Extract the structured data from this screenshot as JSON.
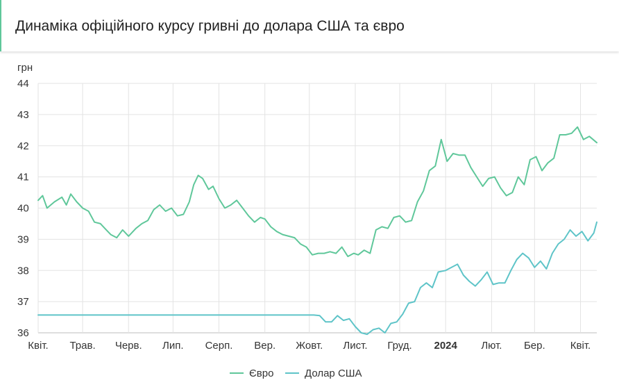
{
  "header": {
    "title": "Динаміка офіційного курсу гривні до долара США та євро"
  },
  "chart_data": {
    "type": "line",
    "title": "Динаміка офіційного курсу гривні до долара США та євро",
    "ylabel": "грн",
    "xlabel": "",
    "ylim": [
      36,
      44
    ],
    "yticks": [
      36,
      37,
      38,
      39,
      40,
      41,
      42,
      43,
      44
    ],
    "xlim": [
      "2023-04-01",
      "2024-04-12"
    ],
    "grid": true,
    "legend_position": "bottom-center",
    "xticks": [
      {
        "date": "2023-04-01",
        "label": "Квіт.",
        "bold": false
      },
      {
        "date": "2023-05-01",
        "label": "Трав.",
        "bold": false
      },
      {
        "date": "2023-06-01",
        "label": "Черв.",
        "bold": false
      },
      {
        "date": "2023-07-01",
        "label": "Лип.",
        "bold": false
      },
      {
        "date": "2023-08-01",
        "label": "Серп.",
        "bold": false
      },
      {
        "date": "2023-09-01",
        "label": "Вер.",
        "bold": false
      },
      {
        "date": "2023-10-01",
        "label": "Жовт.",
        "bold": false
      },
      {
        "date": "2023-11-01",
        "label": "Лист.",
        "bold": false
      },
      {
        "date": "2023-12-01",
        "label": "Груд.",
        "bold": false
      },
      {
        "date": "2024-01-01",
        "label": "2024",
        "bold": true
      },
      {
        "date": "2024-02-01",
        "label": "Лют.",
        "bold": false
      },
      {
        "date": "2024-03-01",
        "label": "Бер.",
        "bold": false
      },
      {
        "date": "2024-04-01",
        "label": "Квіт.",
        "bold": false
      }
    ],
    "series": [
      {
        "name": "Євро",
        "color": "#5fc79a",
        "points": [
          [
            "2023-04-01",
            40.25
          ],
          [
            "2023-04-04",
            40.4
          ],
          [
            "2023-04-07",
            40.0
          ],
          [
            "2023-04-12",
            40.2
          ],
          [
            "2023-04-17",
            40.35
          ],
          [
            "2023-04-20",
            40.1
          ],
          [
            "2023-04-23",
            40.45
          ],
          [
            "2023-04-27",
            40.2
          ],
          [
            "2023-05-01",
            40.0
          ],
          [
            "2023-05-05",
            39.9
          ],
          [
            "2023-05-09",
            39.55
          ],
          [
            "2023-05-13",
            39.5
          ],
          [
            "2023-05-17",
            39.3
          ],
          [
            "2023-05-20",
            39.15
          ],
          [
            "2023-05-24",
            39.05
          ],
          [
            "2023-05-28",
            39.3
          ],
          [
            "2023-06-01",
            39.1
          ],
          [
            "2023-06-06",
            39.35
          ],
          [
            "2023-06-10",
            39.5
          ],
          [
            "2023-06-14",
            39.6
          ],
          [
            "2023-06-18",
            39.95
          ],
          [
            "2023-06-22",
            40.1
          ],
          [
            "2023-06-26",
            39.9
          ],
          [
            "2023-06-30",
            40.0
          ],
          [
            "2023-07-04",
            39.75
          ],
          [
            "2023-07-08",
            39.8
          ],
          [
            "2023-07-12",
            40.2
          ],
          [
            "2023-07-15",
            40.75
          ],
          [
            "2023-07-18",
            41.05
          ],
          [
            "2023-07-21",
            40.95
          ],
          [
            "2023-07-25",
            40.6
          ],
          [
            "2023-07-28",
            40.7
          ],
          [
            "2023-08-01",
            40.3
          ],
          [
            "2023-08-05",
            40.0
          ],
          [
            "2023-08-09",
            40.1
          ],
          [
            "2023-08-13",
            40.25
          ],
          [
            "2023-08-17",
            40.0
          ],
          [
            "2023-08-21",
            39.75
          ],
          [
            "2023-08-25",
            39.55
          ],
          [
            "2023-08-29",
            39.7
          ],
          [
            "2023-09-01",
            39.65
          ],
          [
            "2023-09-05",
            39.4
          ],
          [
            "2023-09-09",
            39.25
          ],
          [
            "2023-09-13",
            39.15
          ],
          [
            "2023-09-17",
            39.1
          ],
          [
            "2023-09-21",
            39.05
          ],
          [
            "2023-09-25",
            38.85
          ],
          [
            "2023-09-29",
            38.75
          ],
          [
            "2023-10-03",
            38.5
          ],
          [
            "2023-10-07",
            38.55
          ],
          [
            "2023-10-11",
            38.55
          ],
          [
            "2023-10-15",
            38.6
          ],
          [
            "2023-10-19",
            38.55
          ],
          [
            "2023-10-23",
            38.75
          ],
          [
            "2023-10-27",
            38.45
          ],
          [
            "2023-10-31",
            38.55
          ],
          [
            "2023-11-03",
            38.5
          ],
          [
            "2023-11-07",
            38.65
          ],
          [
            "2023-11-11",
            38.55
          ],
          [
            "2023-11-15",
            39.3
          ],
          [
            "2023-11-19",
            39.4
          ],
          [
            "2023-11-23",
            39.35
          ],
          [
            "2023-11-27",
            39.7
          ],
          [
            "2023-12-01",
            39.75
          ],
          [
            "2023-12-05",
            39.55
          ],
          [
            "2023-12-09",
            39.6
          ],
          [
            "2023-12-13",
            40.2
          ],
          [
            "2023-12-17",
            40.55
          ],
          [
            "2023-12-21",
            41.2
          ],
          [
            "2023-12-25",
            41.35
          ],
          [
            "2023-12-29",
            42.2
          ],
          [
            "2024-01-02",
            41.5
          ],
          [
            "2024-01-06",
            41.75
          ],
          [
            "2024-01-10",
            41.7
          ],
          [
            "2024-01-14",
            41.7
          ],
          [
            "2024-01-18",
            41.3
          ],
          [
            "2024-01-22",
            41.0
          ],
          [
            "2024-01-26",
            40.7
          ],
          [
            "2024-01-30",
            40.95
          ],
          [
            "2024-02-03",
            41.0
          ],
          [
            "2024-02-07",
            40.65
          ],
          [
            "2024-02-11",
            40.4
          ],
          [
            "2024-02-15",
            40.5
          ],
          [
            "2024-02-19",
            41.0
          ],
          [
            "2024-02-23",
            40.75
          ],
          [
            "2024-02-27",
            41.55
          ],
          [
            "2024-03-02",
            41.65
          ],
          [
            "2024-03-06",
            41.2
          ],
          [
            "2024-03-10",
            41.45
          ],
          [
            "2024-03-14",
            41.6
          ],
          [
            "2024-03-18",
            42.35
          ],
          [
            "2024-03-22",
            42.35
          ],
          [
            "2024-03-26",
            42.4
          ],
          [
            "2024-03-30",
            42.6
          ],
          [
            "2024-04-03",
            42.2
          ],
          [
            "2024-04-07",
            42.3
          ],
          [
            "2024-04-12",
            42.1
          ]
        ]
      },
      {
        "name": "Долар США",
        "color": "#5ec4c8",
        "points": [
          [
            "2023-04-01",
            36.57
          ],
          [
            "2023-10-04",
            36.57
          ],
          [
            "2023-10-08",
            36.55
          ],
          [
            "2023-10-12",
            36.35
          ],
          [
            "2023-10-16",
            36.35
          ],
          [
            "2023-10-20",
            36.55
          ],
          [
            "2023-10-24",
            36.4
          ],
          [
            "2023-10-28",
            36.45
          ],
          [
            "2023-11-01",
            36.2
          ],
          [
            "2023-11-05",
            36.0
          ],
          [
            "2023-11-09",
            35.95
          ],
          [
            "2023-11-13",
            36.1
          ],
          [
            "2023-11-17",
            36.15
          ],
          [
            "2023-11-21",
            36.0
          ],
          [
            "2023-11-25",
            36.3
          ],
          [
            "2023-11-29",
            36.35
          ],
          [
            "2023-12-03",
            36.6
          ],
          [
            "2023-12-07",
            36.95
          ],
          [
            "2023-12-11",
            37.0
          ],
          [
            "2023-12-15",
            37.45
          ],
          [
            "2023-12-19",
            37.6
          ],
          [
            "2023-12-23",
            37.45
          ],
          [
            "2023-12-27",
            37.95
          ],
          [
            "2024-01-01",
            38.0
          ],
          [
            "2024-01-05",
            38.1
          ],
          [
            "2024-01-09",
            38.2
          ],
          [
            "2024-01-13",
            37.85
          ],
          [
            "2024-01-17",
            37.65
          ],
          [
            "2024-01-21",
            37.5
          ],
          [
            "2024-01-25",
            37.7
          ],
          [
            "2024-01-29",
            37.95
          ],
          [
            "2024-02-02",
            37.55
          ],
          [
            "2024-02-06",
            37.6
          ],
          [
            "2024-02-10",
            37.6
          ],
          [
            "2024-02-14",
            38.0
          ],
          [
            "2024-02-18",
            38.35
          ],
          [
            "2024-02-22",
            38.55
          ],
          [
            "2024-02-26",
            38.4
          ],
          [
            "2024-03-01",
            38.1
          ],
          [
            "2024-03-05",
            38.3
          ],
          [
            "2024-03-09",
            38.05
          ],
          [
            "2024-03-13",
            38.55
          ],
          [
            "2024-03-17",
            38.85
          ],
          [
            "2024-03-21",
            39.0
          ],
          [
            "2024-03-25",
            39.3
          ],
          [
            "2024-03-29",
            39.1
          ],
          [
            "2024-04-02",
            39.25
          ],
          [
            "2024-04-06",
            38.95
          ],
          [
            "2024-04-10",
            39.2
          ],
          [
            "2024-04-12",
            39.55
          ]
        ]
      }
    ]
  }
}
